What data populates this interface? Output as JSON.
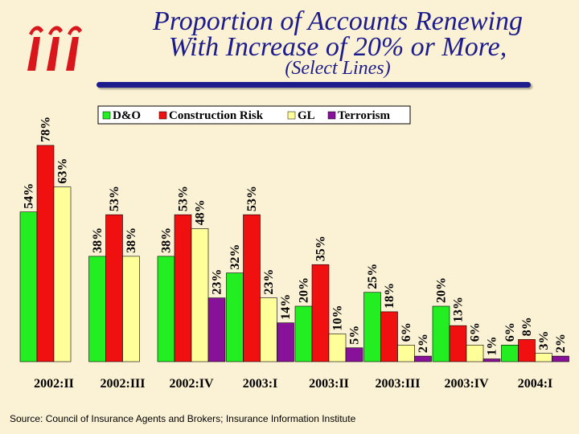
{
  "slide": {
    "title_line1": "Proportion of Accounts Renewing",
    "title_line2": "With Increase of 20% or More,",
    "title_line3": "(Select Lines)",
    "source": "Source:  Council of Insurance Agents and Brokers; Insurance Information Institute",
    "logo_icon": "iii-logo-icon"
  },
  "colors": {
    "title": "#1c1c8c",
    "background": "#fbf1d4",
    "logo": "#d9161c"
  },
  "chart_data": {
    "type": "bar",
    "categories": [
      "2002:II",
      "2002:III",
      "2002:IV",
      "2003:I",
      "2003:II",
      "2003:III",
      "2003:IV",
      "2004:I"
    ],
    "series": [
      {
        "name": "D&O",
        "color": "#22ee22",
        "values": [
          54,
          38,
          38,
          32,
          20,
          25,
          20,
          6
        ],
        "labels": [
          "54%",
          "38%",
          "38%",
          "32%",
          "20%",
          "25%",
          "20%",
          "6%"
        ]
      },
      {
        "name": "Construction Risk",
        "color": "#f01010",
        "values": [
          78,
          53,
          53,
          53,
          35,
          18,
          13,
          8
        ],
        "labels": [
          "78%",
          "53%",
          "53%",
          "53%",
          "35%",
          "18%",
          "13%",
          "8%"
        ]
      },
      {
        "name": "GL",
        "color": "#ffff99",
        "values": [
          63,
          38,
          48,
          23,
          10,
          6,
          6,
          3
        ],
        "labels": [
          "63%",
          "38%",
          "48%",
          "23%",
          "10%",
          "6%",
          "6%",
          "3%"
        ]
      },
      {
        "name": "Terrorism",
        "color": "#881199",
        "values": [
          null,
          null,
          23,
          14,
          5,
          2,
          1,
          2
        ],
        "labels": [
          "",
          "",
          "23%",
          "14%",
          "5%",
          "2%",
          "1%",
          "2%"
        ]
      }
    ],
    "ylim": [
      0,
      80
    ],
    "legend": "top-center",
    "grid": false,
    "xlabel": "",
    "ylabel": ""
  }
}
